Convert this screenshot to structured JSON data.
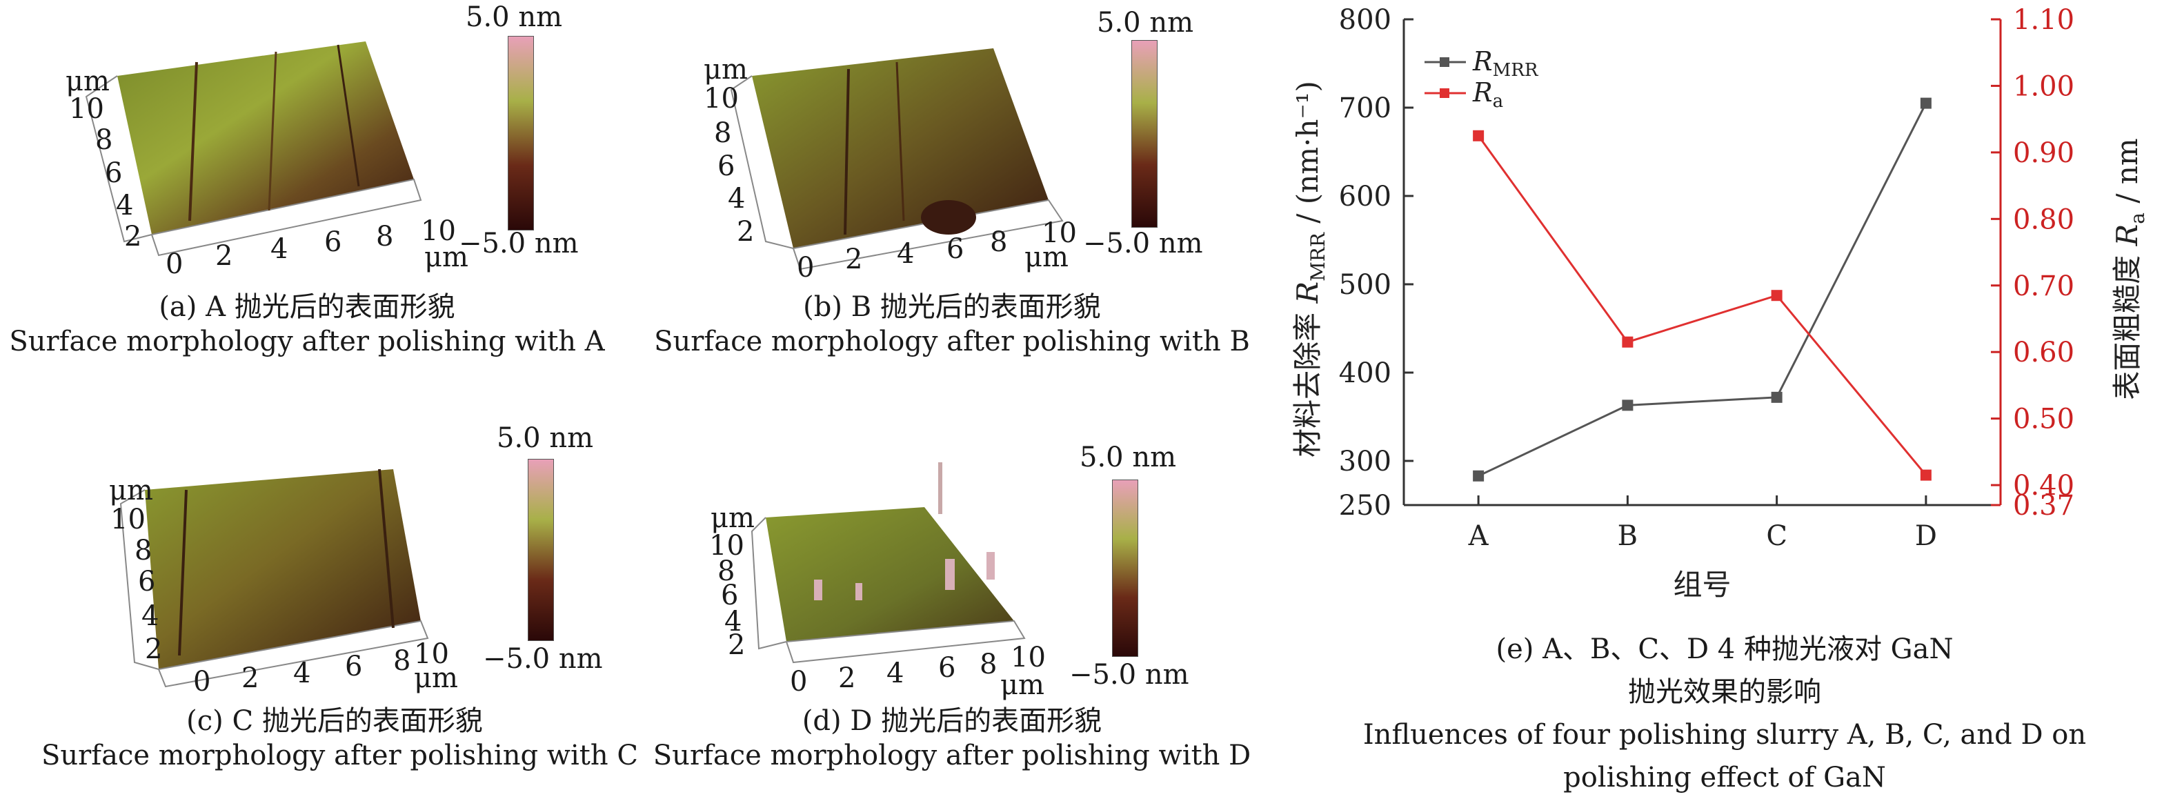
{
  "panels": [
    {
      "id": "a",
      "caption_cn": "(a) A 抛光后的表面形貌",
      "caption_en": "Surface morphology after polishing with A"
    },
    {
      "id": "b",
      "caption_cn": "(b) B 抛光后的表面形貌",
      "caption_en": "Surface morphology after polishing with B"
    },
    {
      "id": "c",
      "caption_cn": "(c) C 抛光后的表面形貌",
      "caption_en": "Surface morphology after polishing with C"
    },
    {
      "id": "d",
      "caption_cn": "(d) D 抛光后的表面形貌",
      "caption_en": "Surface morphology after polishing with D"
    }
  ],
  "afm_axes": {
    "unit": "μm",
    "ticks": [
      "0",
      "2",
      "4",
      "6",
      "8",
      "10"
    ],
    "y_ticks": [
      "2",
      "4",
      "6",
      "8",
      "10"
    ]
  },
  "colorbar": {
    "max_label": "5.0 nm",
    "min_label": "−5.0 nm"
  },
  "colors": {
    "rmrr": "#555555",
    "ra": "#e03030",
    "axis_right": "#cc2222",
    "afm_high": "#9aa838",
    "afm_low": "#3a1a10"
  },
  "chart_data": {
    "type": "line",
    "categories": [
      "A",
      "B",
      "C",
      "D"
    ],
    "series": [
      {
        "name": "R_MRR",
        "legend_main": "R",
        "legend_sub": "MRR",
        "axis": "left",
        "values": [
          283,
          363,
          372,
          705
        ]
      },
      {
        "name": "R_a",
        "legend_main": "R",
        "legend_sub": "a",
        "axis": "right",
        "values": [
          0.925,
          0.615,
          0.685,
          0.415
        ]
      }
    ],
    "xlabel": "组号",
    "ylabel_left": {
      "pre": "材料去除率 ",
      "main": "R",
      "sub": "MRR",
      "post": " / (nm·h⁻¹)"
    },
    "ylabel_right": {
      "pre": "表面粗糙度 ",
      "main": "R",
      "sub": "a",
      "post": " / nm"
    },
    "ylim_left": [
      250,
      800
    ],
    "ylim_right": [
      0.37,
      1.1
    ],
    "yticks_left": [
      "250",
      "300",
      "400",
      "500",
      "600",
      "700",
      "800"
    ],
    "yticks_right": [
      "0.37",
      "0.40",
      "0.50",
      "0.60",
      "0.70",
      "0.80",
      "0.90",
      "1.00",
      "1.10"
    ],
    "legend_position": "top-left",
    "caption_lines": [
      "(e) A、B、C、D 4 种抛光液对 GaN",
      "抛光效果的影响",
      "Influences of four polishing slurry A, B, C, and D on",
      "polishing effect of GaN"
    ]
  }
}
